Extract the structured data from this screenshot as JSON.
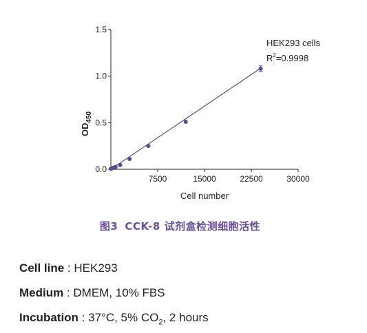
{
  "chart_data": {
    "type": "scatter",
    "xlabel": "Cell number",
    "ylabel_main": "OD",
    "ylabel_sub": "450",
    "xlim": [
      0,
      30000
    ],
    "ylim": [
      0,
      1.5
    ],
    "x_ticks": [
      7500,
      15000,
      22500,
      30000
    ],
    "x_tick_labels": [
      "7500",
      "15000",
      "22500",
      "30000"
    ],
    "y_ticks": [
      0,
      0.5,
      1.0,
      1.5
    ],
    "y_tick_labels": [
      "0.0",
      "0.5",
      "1.0",
      "1.5"
    ],
    "annotation_series": "HEK293 cells",
    "annotation_r2_prefix": "R",
    "annotation_r2_sup": "2",
    "annotation_r2_value": "=0.9998",
    "series": [
      {
        "x": [
          0,
          188,
          375,
          750,
          1500,
          3000,
          6000,
          12000,
          24000
        ],
        "y": [
          0.005,
          0.01,
          0.015,
          0.025,
          0.045,
          0.11,
          0.25,
          0.51,
          1.08
        ],
        "error": [
          0,
          0,
          0,
          0,
          0,
          0,
          0,
          0,
          0.03
        ]
      }
    ],
    "fit_line": {
      "x": [
        0,
        24000
      ],
      "y": [
        0.0,
        1.085
      ]
    },
    "colors": {
      "series": "#5b4a95",
      "axis": "#222222"
    }
  },
  "caption": {
    "figure_no": "图3",
    "text": "CCK-8 试剂盒检测细胞活性"
  },
  "info": [
    {
      "label": "Cell line",
      "sep": " : ",
      "value": "HEK293"
    },
    {
      "label": "Medium",
      "sep": " : ",
      "value": "DMEM, 10% FBS"
    },
    {
      "label": "Incubation",
      "sep": " : ",
      "value_pre": "37°C, 5% CO",
      "value_sub": "2",
      "value_post": ", 2 hours"
    }
  ]
}
